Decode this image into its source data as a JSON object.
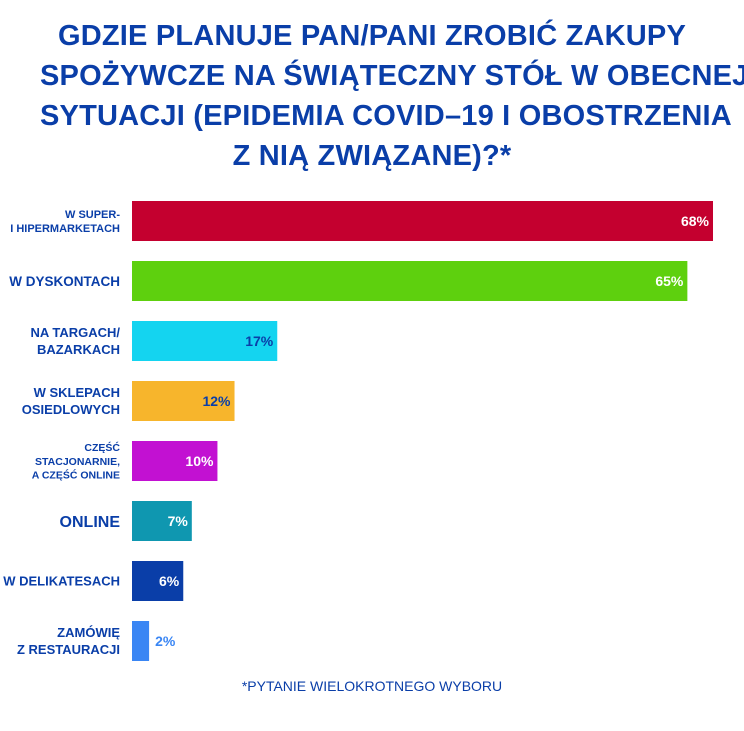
{
  "title_lines": [
    "GDZIE PLANUJE PAN/PANI ZROBIĆ ZAKUPY",
    "SPOŻYWCZE NA ŚWIĄTECZNY STÓŁ W OBECNEJ",
    "SYTUACJI (EPIDEMIA COVID–19 I OBOSTRZENIA",
    "Z NIĄ ZWIĄZANE)?*"
  ],
  "footnote": "*PYTANIE WIELOKROTNEGO WYBORU",
  "chart_data": {
    "type": "bar",
    "orientation": "horizontal",
    "categories": [
      [
        "W SUPER-",
        "I HIPERMARKETACH"
      ],
      [
        "W DYSKONTACH"
      ],
      [
        "NA TARGACH/",
        "BAZARKACH"
      ],
      [
        "W SKLEPACH",
        "OSIEDLOWYCH"
      ],
      [
        "CZĘŚĆ",
        "STACJONARNIE,",
        "A CZĘŚĆ ONLINE"
      ],
      [
        "ONLINE"
      ],
      [
        "W DELIKATESACH"
      ],
      [
        "ZAMÓWIĘ",
        "Z RESTAURACJI"
      ]
    ],
    "values": [
      68,
      65,
      17,
      12,
      10,
      7,
      6,
      2
    ],
    "value_labels": [
      "68%",
      "65%",
      "17%",
      "12%",
      "10%",
      "7%",
      "6%",
      "2%"
    ],
    "colors": [
      "#c4002f",
      "#5ed00e",
      "#14d4f0",
      "#f7b52c",
      "#c211d2",
      "#0f97b0",
      "#0a3ea8",
      "#3a86f4"
    ],
    "label_colors": [
      "#ffffff",
      "#ffffff",
      "#0a3ea8",
      "#0a3ea8",
      "#ffffff",
      "#ffffff",
      "#ffffff",
      "#3a86f4"
    ],
    "label_inside": [
      true,
      true,
      true,
      true,
      true,
      true,
      true,
      false
    ],
    "category_font": [
      "small",
      "large",
      "medium",
      "medium",
      "xsmall",
      "xlarge",
      "medium",
      "medium"
    ],
    "xlim": [
      0,
      68
    ],
    "grid": false,
    "legend": "none"
  }
}
